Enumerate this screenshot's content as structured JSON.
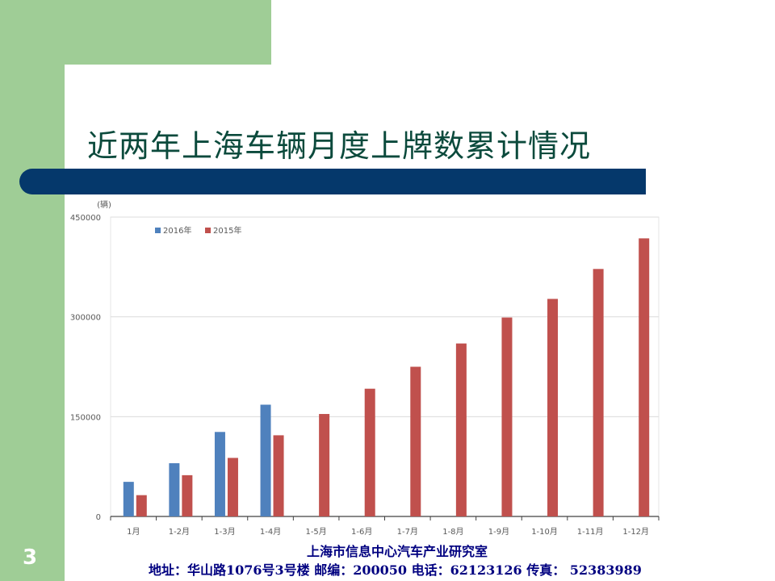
{
  "slide": {
    "title": "近两年上海车辆月度上牌数累计情况",
    "page_number": "3",
    "footer_org": "上海市信息中心汽车产业研究室",
    "footer_address": "地址：华山路1076号3号楼    邮编：200050  电话：62123126  传真：  52383989",
    "colors": {
      "accent_green": "#9fcd96",
      "bar_navy": "#05386b",
      "title_text": "#0b4a3c",
      "footer_text": "#000080"
    }
  },
  "chart_data": {
    "type": "bar",
    "ylabel": "(辆)",
    "ylim": [
      0,
      450000
    ],
    "yticks": [
      "0",
      "150000",
      "300000",
      "450000"
    ],
    "grid": true,
    "legend_position": "top-left",
    "categories": [
      "1月",
      "1-2月",
      "1-3月",
      "1-4月",
      "1-5月",
      "1-6月",
      "1-7月",
      "1-8月",
      "1-9月",
      "1-10月",
      "1-11月",
      "1-12月"
    ],
    "series": [
      {
        "name": "2016年",
        "color": "#4f81bd",
        "values": [
          52000,
          80000,
          127000,
          168000,
          null,
          null,
          null,
          null,
          null,
          null,
          null,
          null
        ]
      },
      {
        "name": "2015年",
        "color": "#c0504d",
        "values": [
          32000,
          62000,
          88000,
          122000,
          154000,
          192000,
          225000,
          260000,
          299000,
          327000,
          372000,
          418000
        ]
      }
    ]
  }
}
